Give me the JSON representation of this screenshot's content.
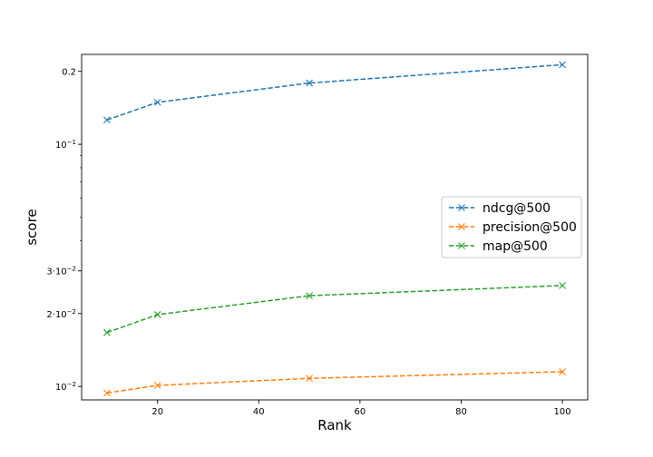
{
  "chart_data": {
    "type": "line",
    "title": "",
    "xlabel": "Rank",
    "ylabel": "score",
    "yscale": "log",
    "xlim": [
      5,
      105
    ],
    "ylim": [
      0.0088,
      0.235
    ],
    "x": [
      10,
      20,
      50,
      100
    ],
    "xticks": [
      20,
      40,
      60,
      80,
      100
    ],
    "xtick_labels": [
      "20",
      "40",
      "60",
      "80",
      "100"
    ],
    "yticks": [
      {
        "value": 0.01,
        "base": "10",
        "exp": "−2",
        "text": ""
      },
      {
        "value": 0.02,
        "base": "2·10",
        "exp": "−2",
        "text": ""
      },
      {
        "value": 0.03,
        "base": "3·10",
        "exp": "−2",
        "text": ""
      },
      {
        "value": 0.1,
        "base": "10",
        "exp": "−1",
        "text": ""
      },
      {
        "value": 0.2,
        "base": "",
        "exp": "",
        "text": "0.2"
      }
    ],
    "minor_yticks": [
      0.04,
      0.05,
      0.06,
      0.07,
      0.08,
      0.09
    ],
    "series": [
      {
        "name": "ndcg@500",
        "color": "#1f77b4",
        "values": [
          0.126,
          0.149,
          0.179,
          0.213
        ]
      },
      {
        "name": "precision@500",
        "color": "#ff7f0e",
        "values": [
          0.0094,
          0.0101,
          0.0108,
          0.0115
        ]
      },
      {
        "name": "map@500",
        "color": "#2ca02c",
        "values": [
          0.0167,
          0.0198,
          0.0237,
          0.0261
        ]
      }
    ],
    "line_style": "dashed",
    "marker": "x",
    "grid": false,
    "legend_position": "center-right"
  }
}
